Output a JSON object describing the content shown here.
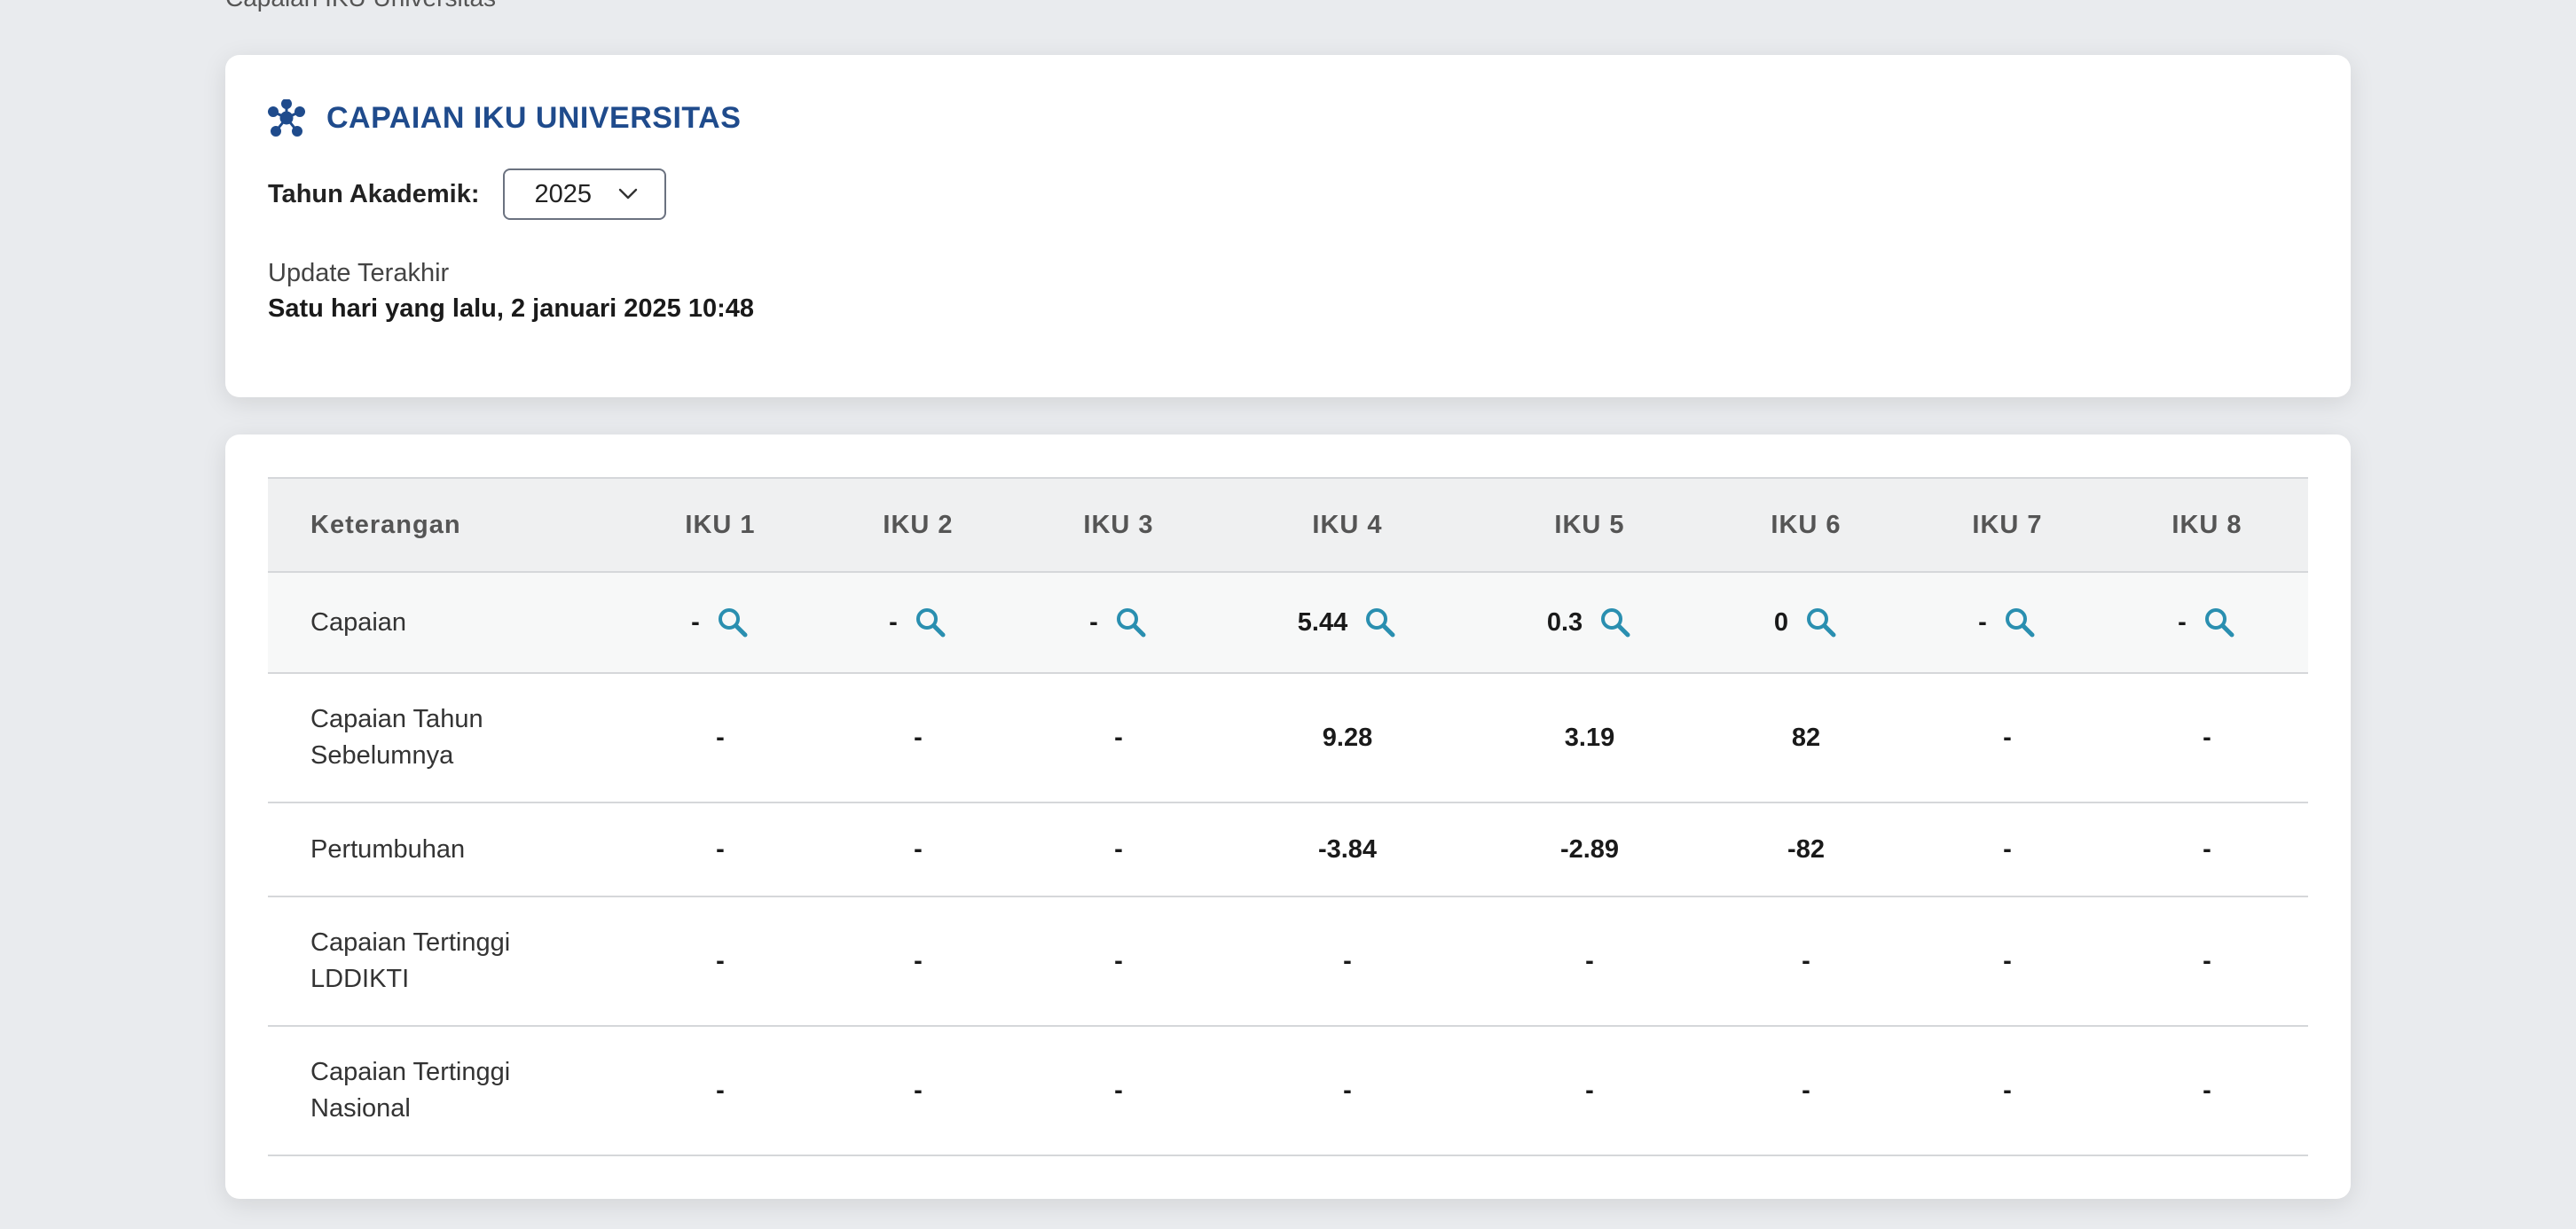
{
  "breadcrumb": "Capaian IKU Universitas",
  "header": {
    "title": "CAPAIAN IKU UNIVERSITAS",
    "title_icon": "network-icon",
    "accent_color": "#1f4b8c"
  },
  "filter": {
    "year_label": "Tahun Akademik:",
    "year_value": "2025"
  },
  "update": {
    "label": "Update Terakhir",
    "value": "Satu hari yang lalu, 2 januari 2025 10:48"
  },
  "table": {
    "columns": [
      "Keterangan",
      "IKU 1",
      "IKU 2",
      "IKU 3",
      "IKU 4",
      "IKU 5",
      "IKU 6",
      "IKU 7",
      "IKU 8"
    ],
    "rows": [
      {
        "label": "Capaian",
        "values": [
          "-",
          "-",
          "-",
          "5.44",
          "0.3",
          "0",
          "-",
          "-"
        ],
        "has_search": true
      },
      {
        "label": "Capaian Tahun Sebelumnya",
        "values": [
          "-",
          "-",
          "-",
          "9.28",
          "3.19",
          "82",
          "-",
          "-"
        ]
      },
      {
        "label": "Pertumbuhan",
        "values": [
          "-",
          "-",
          "-",
          "-3.84",
          "-2.89",
          "-82",
          "-",
          "-"
        ]
      },
      {
        "label": "Capaian Tertinggi LDDIKTI",
        "values": [
          "-",
          "-",
          "-",
          "-",
          "-",
          "-",
          "-",
          "-"
        ]
      },
      {
        "label": "Capaian Tertinggi Nasional",
        "values": [
          "-",
          "-",
          "-",
          "-",
          "-",
          "-",
          "-",
          "-"
        ]
      }
    ],
    "search_icon_color": "#2a8fb0"
  }
}
